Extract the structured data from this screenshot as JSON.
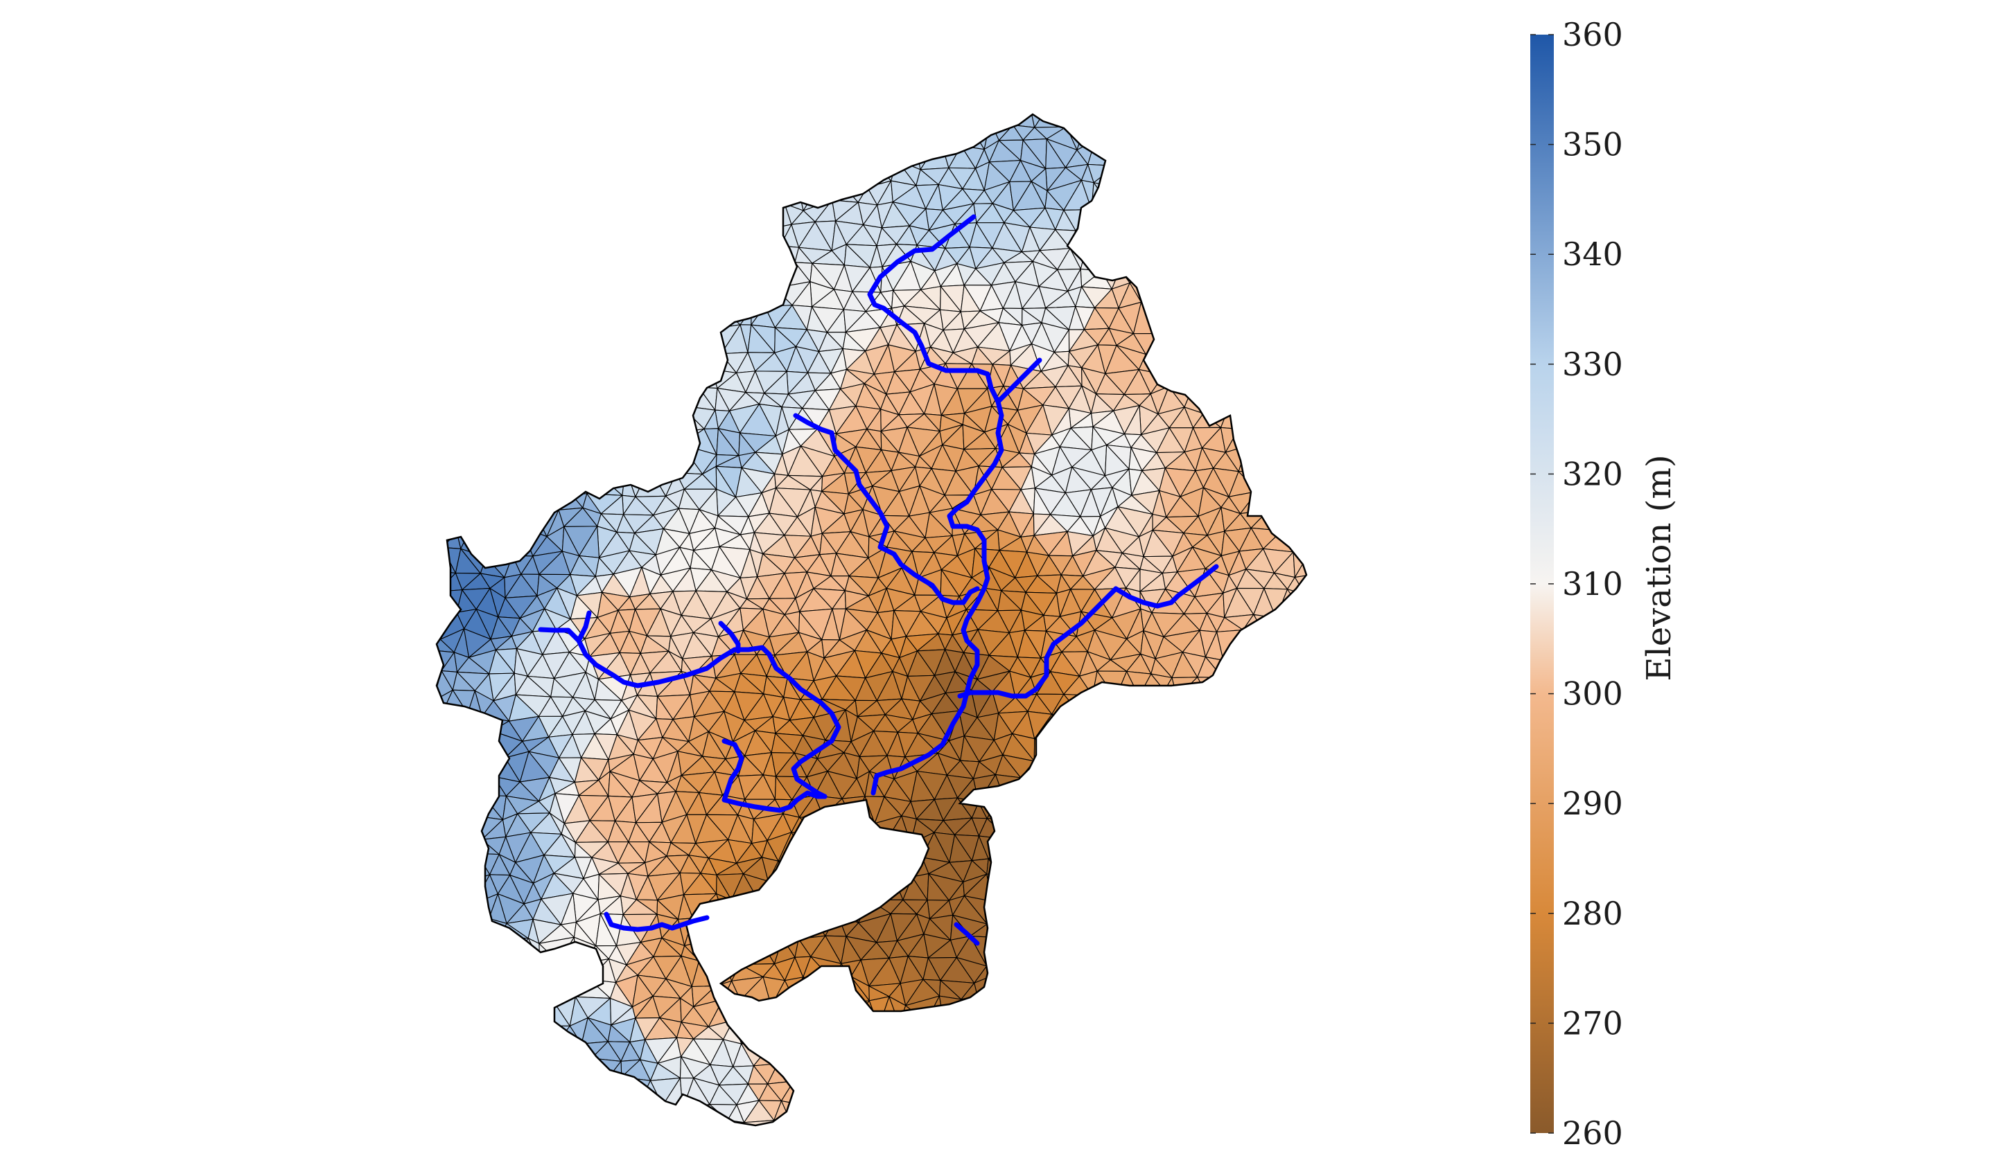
{
  "colorbar": {
    "label": "Elevation (m)",
    "min": 260,
    "max": 360,
    "ticks": [
      360,
      350,
      340,
      330,
      320,
      310,
      300,
      290,
      280,
      270,
      260
    ],
    "colors": {
      "low": "#8a5a2b",
      "low_mid": "#d8893a",
      "mid_low": "#f3b98e",
      "mid": "#f7f4f1",
      "mid_high": "#b9d3ec",
      "high": "#1f57a8"
    }
  },
  "map": {
    "mesh_stroke": "#000000",
    "river_color": "#0000ff",
    "elevation_range": [
      260,
      360
    ]
  }
}
